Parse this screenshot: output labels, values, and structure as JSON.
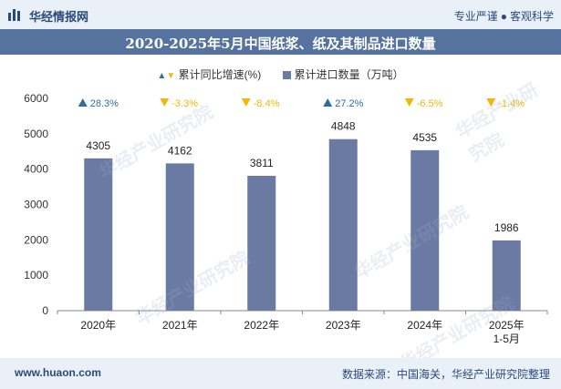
{
  "header": {
    "logo_text": "华经情报网",
    "tagline_left": "专业严谨",
    "tagline_right": "客观科学",
    "logo_icon": "bar-logo-icon"
  },
  "title": "2020-2025年5月中国纸浆、纸及其制品进口数量",
  "legend": {
    "growth_label": "累计同比增速(%)",
    "volume_label": "累计进口数量（万吨）"
  },
  "watermarks": [
    "华经产业研究院",
    "华经产业研究院",
    "华经产业研究院",
    "华经产业研究院",
    "华经产业研究院"
  ],
  "footer": {
    "url": "www.huaon.com",
    "source": "数据来源：中国海关，华经产业研究院整理"
  },
  "colors": {
    "bar": "#6a7aa3",
    "up": "#2e6da4",
    "down": "#f2b807",
    "title_bg": "#56729e"
  },
  "chart_data": {
    "type": "bar",
    "categories": [
      "2020年",
      "2021年",
      "2022年",
      "2023年",
      "2024年",
      "2025年\n1-5月"
    ],
    "series": [
      {
        "name": "累计进口数量（万吨）",
        "values": [
          4305,
          4162,
          3811,
          4848,
          4535,
          1986
        ]
      },
      {
        "name": "累计同比增速(%)",
        "values": [
          28.3,
          -3.3,
          -8.4,
          27.2,
          -6.5,
          -1.4
        ],
        "labels": [
          "28.3%",
          "-3.3%",
          "-8.4%",
          "27.2%",
          "-6.5%",
          "-1.4%"
        ]
      }
    ],
    "yticks": [
      "0",
      "1000",
      "2000",
      "3000",
      "4000",
      "5000",
      "6000"
    ],
    "ylim": [
      0,
      6000
    ],
    "grid": false,
    "legend_position": "top"
  }
}
